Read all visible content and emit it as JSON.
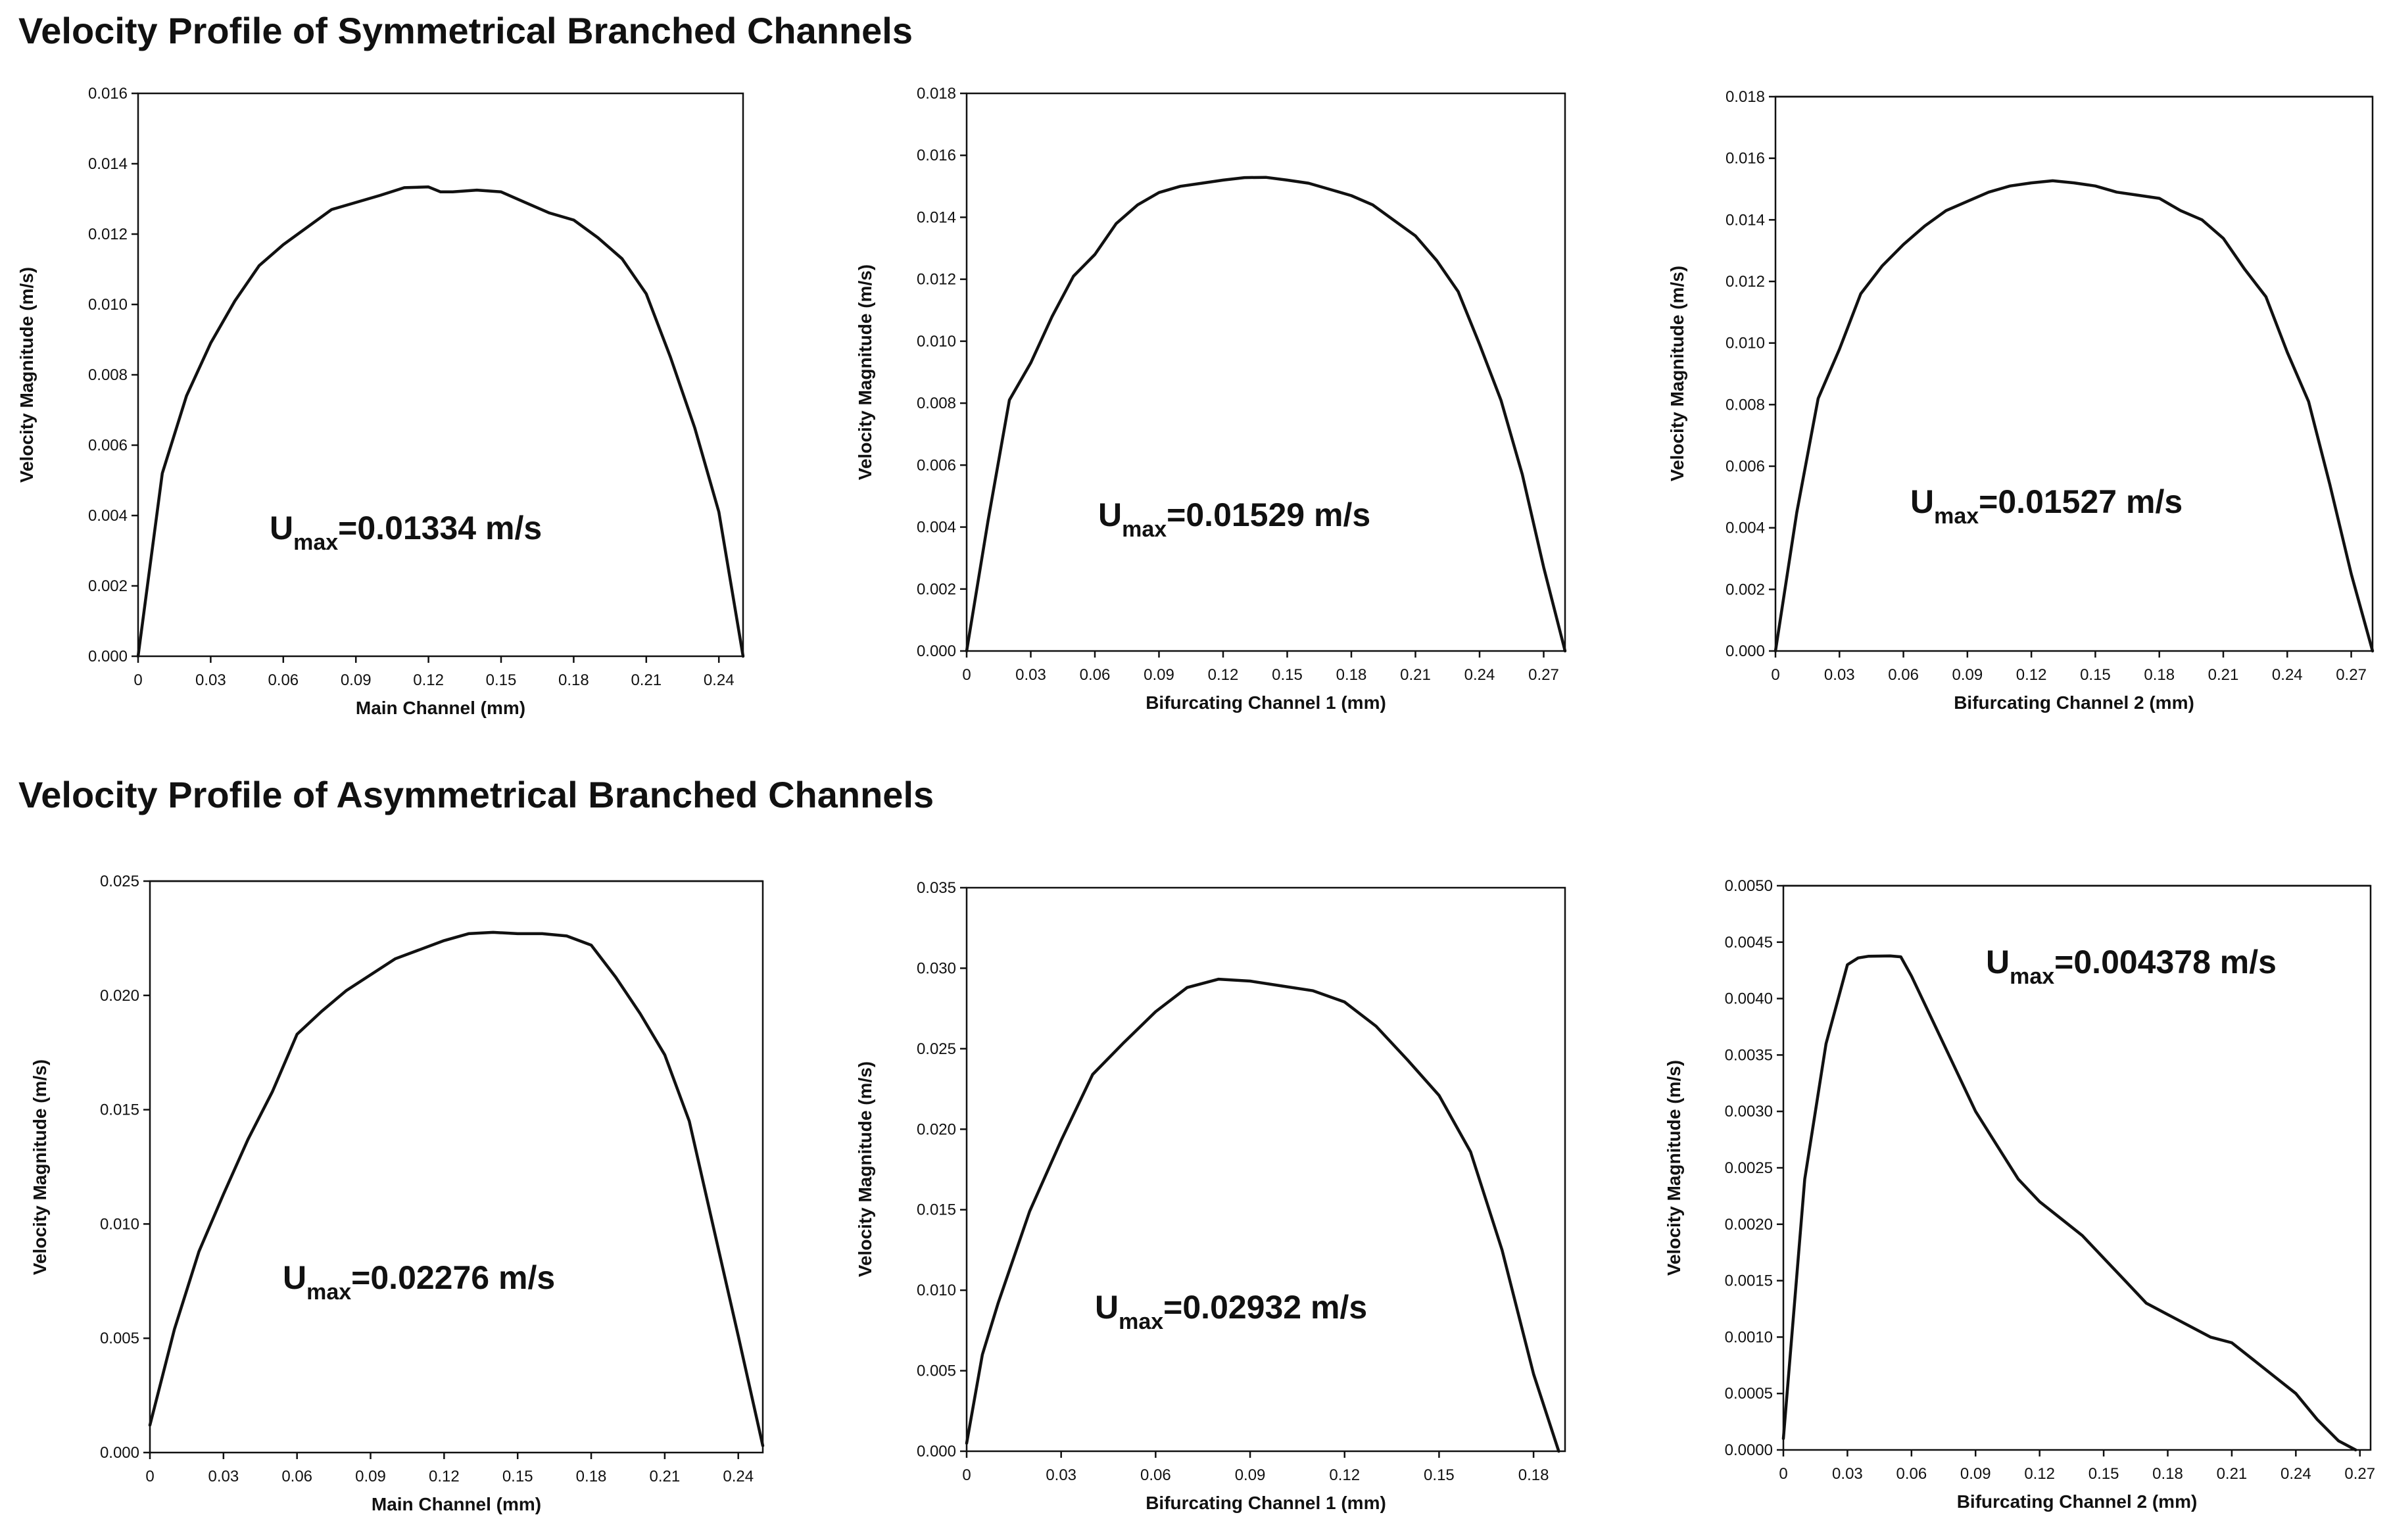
{
  "titles": {
    "symmetrical": "Velocity Profile of Symmetrical Branched Channels",
    "asymmetrical": "Velocity Profile of Asymmetrical Branched Channels"
  },
  "chart_data": [
    {
      "type": "line",
      "xlabel": "Main Channel (mm)",
      "ylabel": "Velocity Magnitude (m/s)",
      "xlim": [
        0,
        0.25
      ],
      "ylim": [
        0,
        0.016
      ],
      "xticks": [
        0,
        0.03,
        0.06,
        0.09,
        0.12,
        0.15,
        0.18,
        0.21,
        0.24
      ],
      "xtick_labels": [
        "0",
        "0.03",
        "0.06",
        "0.09",
        "0.12",
        "0.15",
        "0.18",
        "0.21",
        "0.24"
      ],
      "yticks": [
        0,
        0.002,
        0.004,
        0.006,
        0.008,
        0.01,
        0.012,
        0.014,
        0.016
      ],
      "ytick_labels": [
        "0.000",
        "0.002",
        "0.004",
        "0.006",
        "0.008",
        "0.010",
        "0.012",
        "0.014",
        "0.016"
      ],
      "annotation": {
        "prefix": "U",
        "sub": "max",
        "value": "=0.01334 m/s"
      },
      "x": [
        0,
        0.01,
        0.02,
        0.03,
        0.04,
        0.05,
        0.06,
        0.07,
        0.08,
        0.09,
        0.1,
        0.11,
        0.12,
        0.125,
        0.13,
        0.14,
        0.15,
        0.16,
        0.17,
        0.18,
        0.19,
        0.2,
        0.21,
        0.22,
        0.23,
        0.24,
        0.25
      ],
      "y": [
        0,
        0.0052,
        0.0074,
        0.0089,
        0.0101,
        0.0111,
        0.0117,
        0.0122,
        0.0127,
        0.0129,
        0.0131,
        0.01332,
        0.01334,
        0.0132,
        0.0132,
        0.01325,
        0.0132,
        0.0129,
        0.0126,
        0.0124,
        0.0119,
        0.0113,
        0.0103,
        0.0085,
        0.0065,
        0.0041,
        0
      ]
    },
    {
      "type": "line",
      "xlabel": "Bifurcating Channel 1 (mm)",
      "ylabel": "Velocity Magnitude (m/s)",
      "xlim": [
        0,
        0.28
      ],
      "ylim": [
        0,
        0.018
      ],
      "xticks": [
        0,
        0.03,
        0.06,
        0.09,
        0.12,
        0.15,
        0.18,
        0.21,
        0.24,
        0.27
      ],
      "xtick_labels": [
        "0",
        "0.03",
        "0.06",
        "0.09",
        "0.12",
        "0.15",
        "0.18",
        "0.21",
        "0.24",
        "0.27"
      ],
      "yticks": [
        0,
        0.002,
        0.004,
        0.006,
        0.008,
        0.01,
        0.012,
        0.014,
        0.016,
        0.018
      ],
      "ytick_labels": [
        "0.000",
        "0.002",
        "0.004",
        "0.006",
        "0.008",
        "0.010",
        "0.012",
        "0.014",
        "0.016",
        "0.018"
      ],
      "annotation": {
        "prefix": "U",
        "sub": "max",
        "value": "=0.01529 m/s"
      },
      "x": [
        0,
        0.01,
        0.02,
        0.03,
        0.04,
        0.05,
        0.06,
        0.07,
        0.08,
        0.09,
        0.1,
        0.11,
        0.12,
        0.13,
        0.14,
        0.15,
        0.16,
        0.17,
        0.18,
        0.19,
        0.2,
        0.21,
        0.22,
        0.23,
        0.24,
        0.25,
        0.26,
        0.27,
        0.28
      ],
      "y": [
        0,
        0.0042,
        0.0081,
        0.0093,
        0.0108,
        0.0121,
        0.0128,
        0.0138,
        0.0144,
        0.0148,
        0.015,
        0.0151,
        0.0152,
        0.01528,
        0.01529,
        0.0152,
        0.0151,
        0.0149,
        0.0147,
        0.0144,
        0.0139,
        0.0134,
        0.0126,
        0.0116,
        0.0099,
        0.0081,
        0.0057,
        0.0027,
        0
      ]
    },
    {
      "type": "line",
      "xlabel": "Bifurcating Channel 2 (mm)",
      "ylabel": "Velocity Magnitude (m/s)",
      "xlim": [
        0,
        0.28
      ],
      "ylim": [
        0,
        0.018
      ],
      "xticks": [
        0,
        0.03,
        0.06,
        0.09,
        0.12,
        0.15,
        0.18,
        0.21,
        0.24,
        0.27
      ],
      "xtick_labels": [
        "0",
        "0.03",
        "0.06",
        "0.09",
        "0.12",
        "0.15",
        "0.18",
        "0.21",
        "0.24",
        "0.27"
      ],
      "yticks": [
        0,
        0.002,
        0.004,
        0.006,
        0.008,
        0.01,
        0.012,
        0.014,
        0.016,
        0.018
      ],
      "ytick_labels": [
        "0.000",
        "0.002",
        "0.004",
        "0.006",
        "0.008",
        "0.010",
        "0.012",
        "0.014",
        "0.016",
        "0.018"
      ],
      "annotation": {
        "prefix": "U",
        "sub": "max",
        "value": "=0.01527 m/s"
      },
      "x": [
        0,
        0.01,
        0.02,
        0.03,
        0.04,
        0.05,
        0.06,
        0.07,
        0.08,
        0.09,
        0.1,
        0.11,
        0.12,
        0.13,
        0.14,
        0.15,
        0.16,
        0.17,
        0.18,
        0.19,
        0.2,
        0.21,
        0.22,
        0.23,
        0.24,
        0.25,
        0.26,
        0.27,
        0.28
      ],
      "y": [
        0,
        0.0045,
        0.0082,
        0.0098,
        0.0116,
        0.0125,
        0.0132,
        0.0138,
        0.0143,
        0.0146,
        0.0149,
        0.0151,
        0.0152,
        0.01527,
        0.0152,
        0.0151,
        0.0149,
        0.0148,
        0.0147,
        0.0143,
        0.014,
        0.0134,
        0.0124,
        0.0115,
        0.0097,
        0.0081,
        0.0054,
        0.0025,
        0
      ]
    },
    {
      "type": "line",
      "xlabel": "Main Channel (mm)",
      "ylabel": "Velocity Magnitude (m/s)",
      "xlim": [
        0,
        0.25
      ],
      "ylim": [
        0,
        0.025
      ],
      "xticks": [
        0,
        0.03,
        0.06,
        0.09,
        0.12,
        0.15,
        0.18,
        0.21,
        0.24
      ],
      "xtick_labels": [
        "0",
        "0.03",
        "0.06",
        "0.09",
        "0.12",
        "0.15",
        "0.18",
        "0.21",
        "0.24"
      ],
      "yticks": [
        0,
        0.005,
        0.01,
        0.015,
        0.02,
        0.025
      ],
      "ytick_labels": [
        "0.000",
        "0.005",
        "0.010",
        "0.015",
        "0.020",
        "0.025"
      ],
      "annotation": {
        "prefix": "U",
        "sub": "max",
        "value": "=0.02276 m/s"
      },
      "x": [
        0,
        0.01,
        0.02,
        0.03,
        0.04,
        0.05,
        0.06,
        0.07,
        0.08,
        0.09,
        0.1,
        0.11,
        0.12,
        0.13,
        0.14,
        0.15,
        0.16,
        0.17,
        0.18,
        0.19,
        0.2,
        0.21,
        0.22,
        0.23,
        0.24,
        0.25
      ],
      "y": [
        0.0012,
        0.0054,
        0.0088,
        0.0113,
        0.0137,
        0.0158,
        0.0183,
        0.0193,
        0.0202,
        0.0209,
        0.0216,
        0.022,
        0.0224,
        0.0227,
        0.02276,
        0.0227,
        0.0227,
        0.0226,
        0.0222,
        0.0208,
        0.0192,
        0.0174,
        0.0145,
        0.0098,
        0.0051,
        0.0003
      ]
    },
    {
      "type": "line",
      "xlabel": "Bifurcating Channel 1 (mm)",
      "ylabel": "Velocity Magnitude (m/s)",
      "xlim": [
        0,
        0.19
      ],
      "ylim": [
        0,
        0.035
      ],
      "xticks": [
        0,
        0.03,
        0.06,
        0.09,
        0.12,
        0.15,
        0.18
      ],
      "xtick_labels": [
        "0",
        "0.03",
        "0.06",
        "0.09",
        "0.12",
        "0.15",
        "0.18"
      ],
      "yticks": [
        0,
        0.005,
        0.01,
        0.015,
        0.02,
        0.025,
        0.03,
        0.035
      ],
      "ytick_labels": [
        "0.000",
        "0.005",
        "0.010",
        "0.015",
        "0.020",
        "0.025",
        "0.030",
        "0.035"
      ],
      "annotation": {
        "prefix": "U",
        "sub": "max",
        "value": "=0.02932 m/s"
      },
      "x": [
        0,
        0.005,
        0.01,
        0.02,
        0.03,
        0.04,
        0.05,
        0.06,
        0.07,
        0.08,
        0.09,
        0.1,
        0.11,
        0.12,
        0.13,
        0.14,
        0.15,
        0.16,
        0.17,
        0.18,
        0.188
      ],
      "y": [
        0.0005,
        0.006,
        0.0092,
        0.0149,
        0.0193,
        0.0234,
        0.0254,
        0.0273,
        0.0288,
        0.02932,
        0.0292,
        0.0289,
        0.0286,
        0.0279,
        0.0264,
        0.0243,
        0.0221,
        0.0186,
        0.0125,
        0.0048,
        0
      ]
    },
    {
      "type": "line",
      "xlabel": "Bifurcating Channel 2 (mm)",
      "ylabel": "Velocity Magnitude (m/s)",
      "xlim": [
        0,
        0.275
      ],
      "ylim": [
        0,
        0.005
      ],
      "xticks": [
        0,
        0.03,
        0.06,
        0.09,
        0.12,
        0.15,
        0.18,
        0.21,
        0.24,
        0.27
      ],
      "xtick_labels": [
        "0",
        "0.03",
        "0.06",
        "0.09",
        "0.12",
        "0.15",
        "0.18",
        "0.21",
        "0.24",
        "0.27"
      ],
      "yticks": [
        0,
        0.0005,
        0.001,
        0.0015,
        0.002,
        0.0025,
        0.003,
        0.0035,
        0.004,
        0.0045,
        0.005
      ],
      "ytick_labels": [
        "0.0000",
        "0.0005",
        "0.0010",
        "0.0015",
        "0.0020",
        "0.0025",
        "0.0030",
        "0.0035",
        "0.0040",
        "0.0045",
        "0.0050"
      ],
      "annotation": {
        "prefix": "U",
        "sub": "max",
        "value": "=0.004378 m/s"
      },
      "x": [
        0,
        0.01,
        0.02,
        0.03,
        0.035,
        0.04,
        0.05,
        0.055,
        0.06,
        0.07,
        0.08,
        0.09,
        0.1,
        0.11,
        0.12,
        0.13,
        0.14,
        0.15,
        0.16,
        0.17,
        0.18,
        0.19,
        0.2,
        0.21,
        0.22,
        0.23,
        0.24,
        0.25,
        0.26,
        0.268
      ],
      "y": [
        0.0001,
        0.0024,
        0.0036,
        0.0043,
        0.00436,
        0.004375,
        0.004378,
        0.00437,
        0.0042,
        0.0038,
        0.0034,
        0.003,
        0.0027,
        0.0024,
        0.0022,
        0.00205,
        0.0019,
        0.0017,
        0.0015,
        0.0013,
        0.0012,
        0.0011,
        0.001,
        0.00095,
        0.0008,
        0.00065,
        0.0005,
        0.00027,
        8e-05,
        0
      ]
    }
  ]
}
